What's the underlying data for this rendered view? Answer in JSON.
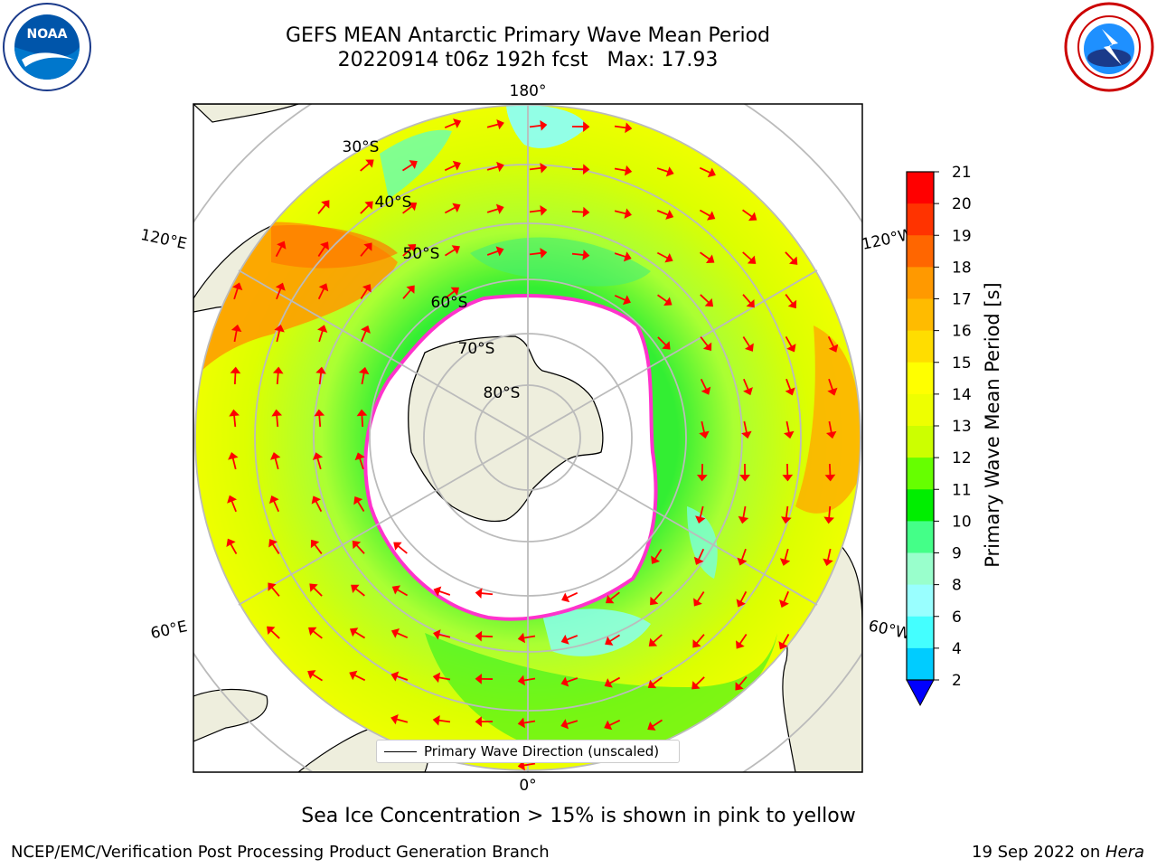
{
  "header": {
    "title_line1": "GEFS MEAN Antarctic Primary Wave Mean Period",
    "title_line2": "20220914 t06z 192h fcst   Max: 17.93"
  },
  "logos": {
    "left": "noaa-logo",
    "right": "nws-logo"
  },
  "map": {
    "projection": "south-polar-stereographic",
    "meridian_labels": {
      "top": "180°",
      "bottom": "0°",
      "upper_left": "120°E",
      "upper_right": "120°W",
      "lower_left": "60°E",
      "lower_right": "60°W"
    },
    "parallel_labels": [
      "30°S",
      "40°S",
      "50°S",
      "60°S",
      "70°S",
      "80°S"
    ],
    "legend_label": "Primary Wave Direction (unscaled)",
    "colors": {
      "land": "#eeeedd",
      "ice_edge": "#ff33cc",
      "arrow": "#ff0000",
      "grid": "#bbbbbb"
    }
  },
  "colorbar": {
    "title": "Primary Wave Mean Period [s]",
    "ticks": [
      "21",
      "20",
      "19",
      "18",
      "17",
      "16",
      "15",
      "14",
      "13",
      "12",
      "11",
      "10",
      "9",
      "8",
      "6",
      "4",
      "2"
    ],
    "colors": [
      "#ff0000",
      "#ff3300",
      "#ff6600",
      "#ff9900",
      "#ffbb00",
      "#ffdd00",
      "#ffff00",
      "#eeff00",
      "#ccff00",
      "#66ff00",
      "#00ee00",
      "#44ff88",
      "#99ffcc",
      "#99ffff",
      "#44ffff",
      "#00ccff",
      "#0066ff"
    ],
    "extend_color": "#0000ff"
  },
  "notes": {
    "ice": "Sea Ice Concentration > 15% is shown in pink to yellow"
  },
  "footer": {
    "left": "NCEP/EMC/Verification Post Processing Product Generation Branch",
    "date": "19 Sep 2022 on ",
    "host": "Hera"
  }
}
